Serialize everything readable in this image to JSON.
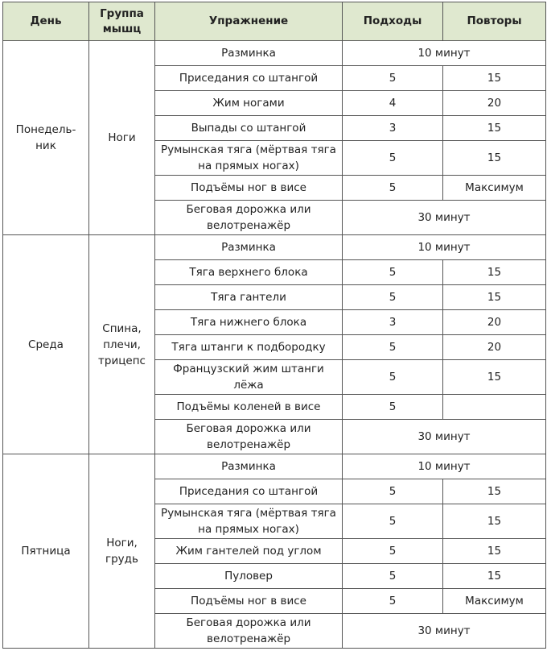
{
  "header": {
    "day": "День",
    "group": "Группа мышц",
    "exercise": "Упражнение",
    "sets": "Подходы",
    "reps": "Повторы"
  },
  "header_bg": "#dfe8cf",
  "days": [
    {
      "day": "Понедель-ник",
      "group": "Ноги",
      "rows": [
        {
          "exercise": "Разминка",
          "span": "10 минут"
        },
        {
          "exercise": "Приседания со штангой",
          "sets": "5",
          "reps": "15"
        },
        {
          "exercise": "Жим ногами",
          "sets": "4",
          "reps": "20"
        },
        {
          "exercise": "Выпады со штангой",
          "sets": "3",
          "reps": "15"
        },
        {
          "exercise": "Румынская тяга (мёртвая тяга на прямых ногах)",
          "sets": "5",
          "reps": "15",
          "tall": true
        },
        {
          "exercise": "Подъёмы ног в висе",
          "sets": "5",
          "reps": "Максимум"
        },
        {
          "exercise": "Беговая дорожка или велотренажёр",
          "span": "30 минут",
          "tall": true
        }
      ]
    },
    {
      "day": "Среда",
      "group": "Спина, плечи, трицепс",
      "rows": [
        {
          "exercise": "Разминка",
          "span": "10 минут"
        },
        {
          "exercise": "Тяга верхнего блока",
          "sets": "5",
          "reps": "15"
        },
        {
          "exercise": "Тяга гантели",
          "sets": "5",
          "reps": "15"
        },
        {
          "exercise": "Тяга нижнего блока",
          "sets": "3",
          "reps": "20"
        },
        {
          "exercise": "Тяга штанги к подбородку",
          "sets": "5",
          "reps": "20"
        },
        {
          "exercise": "Французский жим штанги лёжа",
          "sets": "5",
          "reps": "15",
          "tall": true
        },
        {
          "exercise": "Подъёмы коленей в висе",
          "sets": "5",
          "reps": ""
        },
        {
          "exercise": "Беговая дорожка или велотренажёр",
          "span": "30 минут",
          "tall": true
        }
      ]
    },
    {
      "day": "Пятница",
      "group": "Ноги, грудь",
      "rows": [
        {
          "exercise": "Разминка",
          "span": "10 минут"
        },
        {
          "exercise": "Приседания со штангой",
          "sets": "5",
          "reps": "15"
        },
        {
          "exercise": "Румынская тяга (мёртвая тяга на прямых ногах)",
          "sets": "5",
          "reps": "15",
          "tall": true
        },
        {
          "exercise": "Жим гантелей под углом",
          "sets": "5",
          "reps": "15"
        },
        {
          "exercise": "Пуловер",
          "sets": "5",
          "reps": "15"
        },
        {
          "exercise": "Подъёмы ног в висе",
          "sets": "5",
          "reps": "Максимум"
        },
        {
          "exercise": "Беговая дорожка или велотренажёр",
          "span": "30 минут",
          "tall": true
        }
      ]
    }
  ]
}
